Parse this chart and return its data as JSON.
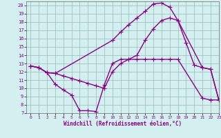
{
  "xlabel": "Windchill (Refroidissement éolien,°C)",
  "background_color": "#d4efef",
  "line_color": "#880088",
  "grid_color": "#99bbbb",
  "ylim": [
    7,
    20.5
  ],
  "xlim": [
    -0.5,
    23
  ],
  "yticks": [
    7,
    8,
    9,
    10,
    11,
    12,
    13,
    14,
    15,
    16,
    17,
    18,
    19,
    20
  ],
  "xticks": [
    0,
    1,
    2,
    3,
    4,
    5,
    6,
    7,
    8,
    9,
    10,
    11,
    12,
    13,
    14,
    15,
    16,
    17,
    18,
    19,
    20,
    21,
    22,
    23
  ],
  "line1_x": [
    0,
    1,
    2,
    3,
    4,
    5,
    6,
    7,
    8,
    9,
    10,
    11,
    12,
    13,
    14,
    15,
    16,
    17,
    18,
    21,
    22,
    23
  ],
  "line1_y": [
    12.7,
    12.5,
    11.9,
    10.5,
    9.8,
    9.2,
    7.3,
    7.3,
    7.2,
    10.4,
    13.0,
    13.5,
    13.5,
    13.5,
    13.5,
    13.5,
    13.5,
    13.5,
    13.5,
    8.8,
    8.6,
    8.6
  ],
  "line2_x": [
    0,
    1,
    2,
    3,
    10,
    11,
    12,
    13,
    14,
    15,
    16,
    17,
    18,
    21,
    22,
    23
  ],
  "line2_y": [
    12.7,
    12.5,
    11.9,
    11.8,
    15.8,
    16.8,
    17.7,
    18.5,
    19.3,
    20.2,
    20.3,
    19.8,
    18.2,
    12.5,
    12.3,
    8.6
  ],
  "line3_x": [
    0,
    1,
    2,
    3,
    4,
    5,
    6,
    7,
    8,
    9,
    10,
    11,
    12,
    13,
    14,
    15,
    16,
    17,
    18,
    19,
    20,
    21,
    22,
    23
  ],
  "line3_y": [
    12.7,
    12.5,
    11.9,
    11.8,
    11.5,
    11.2,
    10.9,
    10.6,
    10.3,
    10.0,
    12.0,
    13.0,
    13.5,
    14.0,
    15.8,
    17.2,
    18.2,
    18.5,
    18.2,
    15.5,
    12.8,
    12.5,
    12.3,
    8.6
  ],
  "marker": "+",
  "marker_size": 4,
  "line_width": 1.0
}
